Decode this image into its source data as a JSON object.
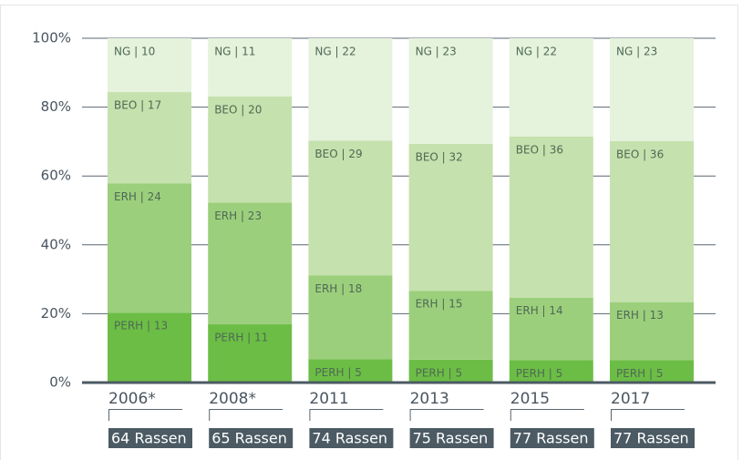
{
  "chart_data": {
    "type": "bar",
    "stack": "percent",
    "categories": [
      "2006*",
      "2008*",
      "2011",
      "2013",
      "2015",
      "2017"
    ],
    "sample_labels": [
      "64 Rassen",
      "65 Rassen",
      "74 Rassen",
      "75 Rassen",
      "77 Rassen",
      "77 Rassen"
    ],
    "series": [
      {
        "name": "PERH",
        "color": "#6cbd45",
        "values": [
          13,
          11,
          5,
          5,
          5,
          5
        ],
        "value_labels": [
          "PERH | 13",
          "PERH | 11",
          "PERH | 5",
          "PERH | 5",
          "PERH | 5",
          "PERH | 5"
        ]
      },
      {
        "name": "ERH",
        "color": "#9ccf7c",
        "values": [
          24,
          23,
          18,
          15,
          14,
          13
        ],
        "value_labels": [
          "ERH | 24",
          "ERH | 23",
          "ERH | 18",
          "ERH | 15",
          "ERH | 14",
          "ERH | 13"
        ]
      },
      {
        "name": "BEO",
        "color": "#c5e1ad",
        "values": [
          17,
          20,
          29,
          32,
          36,
          36
        ],
        "value_labels": [
          "BEO | 17",
          "BEO | 20",
          "BEO | 29",
          "BEO | 32",
          "BEO | 36",
          "BEO | 36"
        ]
      },
      {
        "name": "NG",
        "color": "#e5f2dc",
        "values": [
          10,
          11,
          22,
          23,
          22,
          23
        ],
        "value_labels": [
          "NG | 10",
          "NG | 11",
          "NG | 22",
          "NG | 23",
          "NG | 22",
          "NG | 23"
        ]
      }
    ],
    "ylim": [
      0,
      100
    ],
    "yticks": [
      {
        "value": 0,
        "label": "0%"
      },
      {
        "value": 20,
        "label": "20%"
      },
      {
        "value": 40,
        "label": "40%"
      },
      {
        "value": 60,
        "label": "60%"
      },
      {
        "value": 80,
        "label": "80%"
      },
      {
        "value": 100,
        "label": "100%"
      }
    ],
    "grid": true
  }
}
